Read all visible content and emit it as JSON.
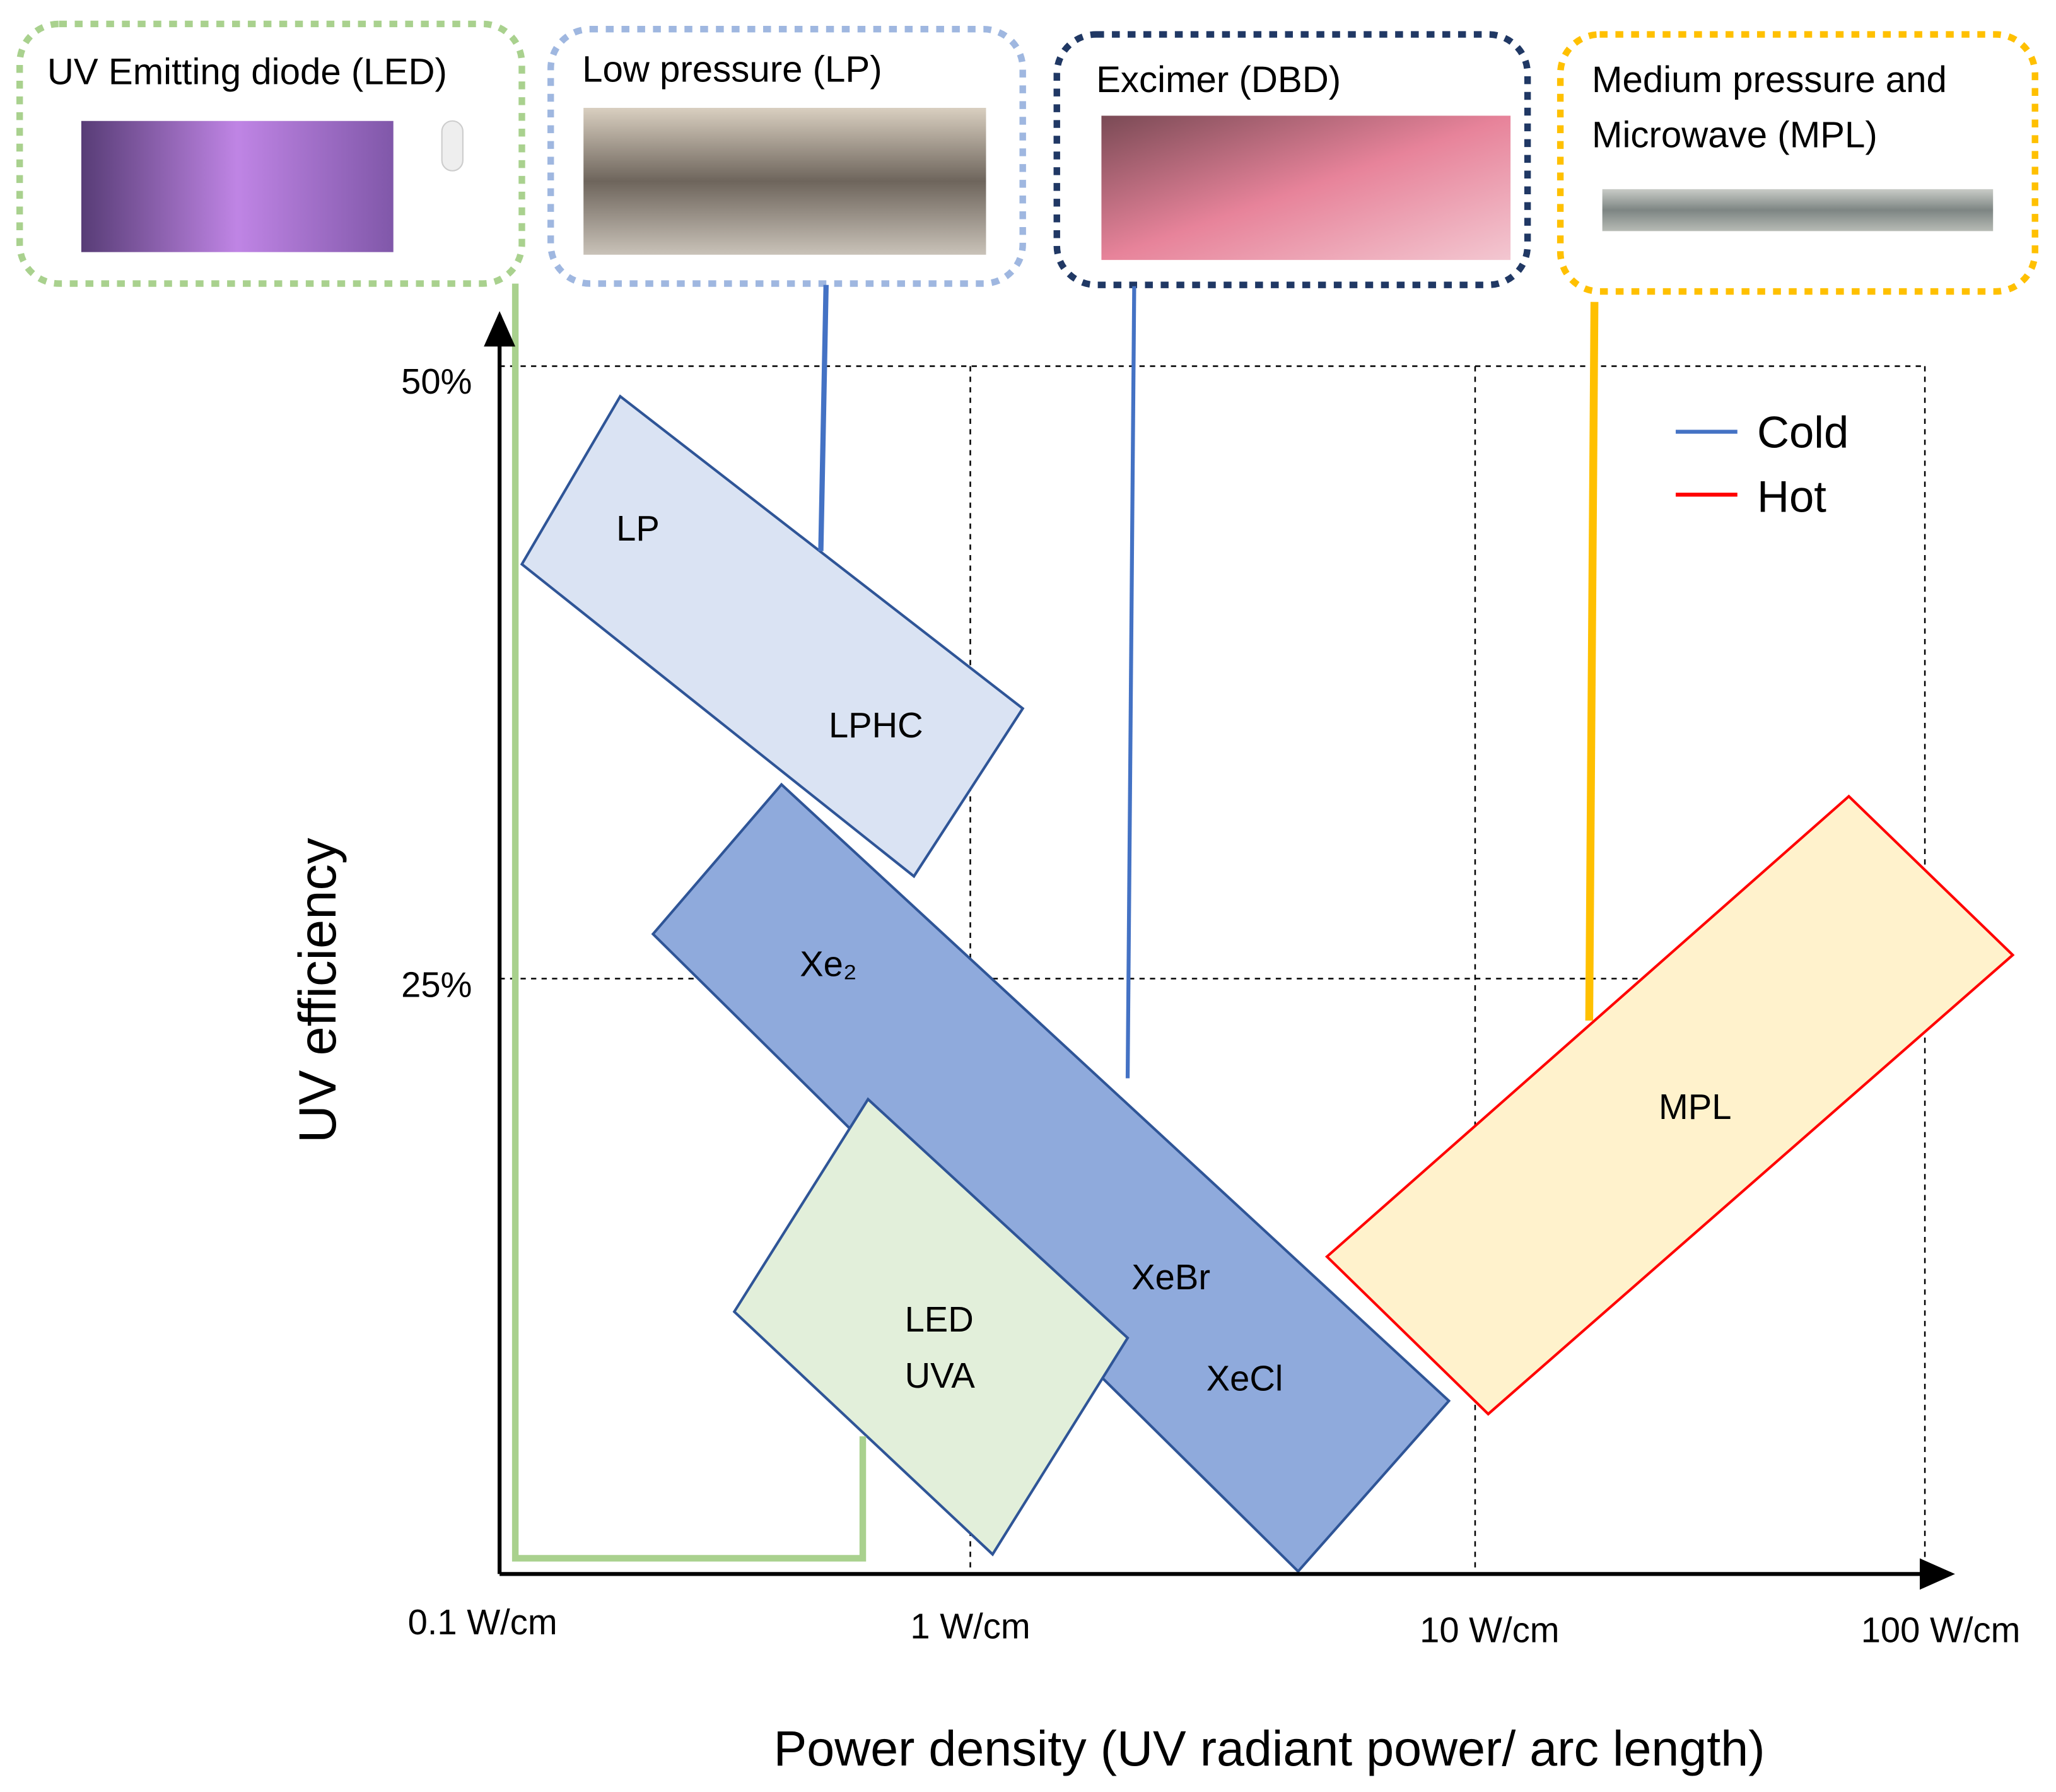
{
  "panels": [
    {
      "lines": [
        "UV Emitting diode (LED)"
      ]
    },
    {
      "lines": [
        "Low pressure (LP)"
      ]
    },
    {
      "lines": [
        "Excimer (DBD)"
      ]
    },
    {
      "lines": [
        "Medium pressure and",
        "Microwave (MPL)"
      ]
    }
  ],
  "axes": {
    "y_label": "UV efficiency",
    "x_label": "Power density (UV radiant power/ arc length)",
    "y_ticks": [
      "50%",
      "25%"
    ],
    "x_ticks": [
      "0.1 W/cm",
      "1 W/cm",
      "10 W/cm",
      "100 W/cm"
    ]
  },
  "regions": [
    {
      "labels": [
        "LP",
        "LPHC"
      ]
    },
    {
      "labels": [
        "Xe₂",
        "XeBr",
        "XeCl"
      ]
    },
    {
      "labels": [
        "LED",
        "UVA"
      ]
    },
    {
      "labels": [
        "MPL"
      ]
    }
  ],
  "legend": [
    {
      "label": "Cold",
      "color": "#4472c4"
    },
    {
      "label": "Hot",
      "color": "#ff0000"
    }
  ]
}
